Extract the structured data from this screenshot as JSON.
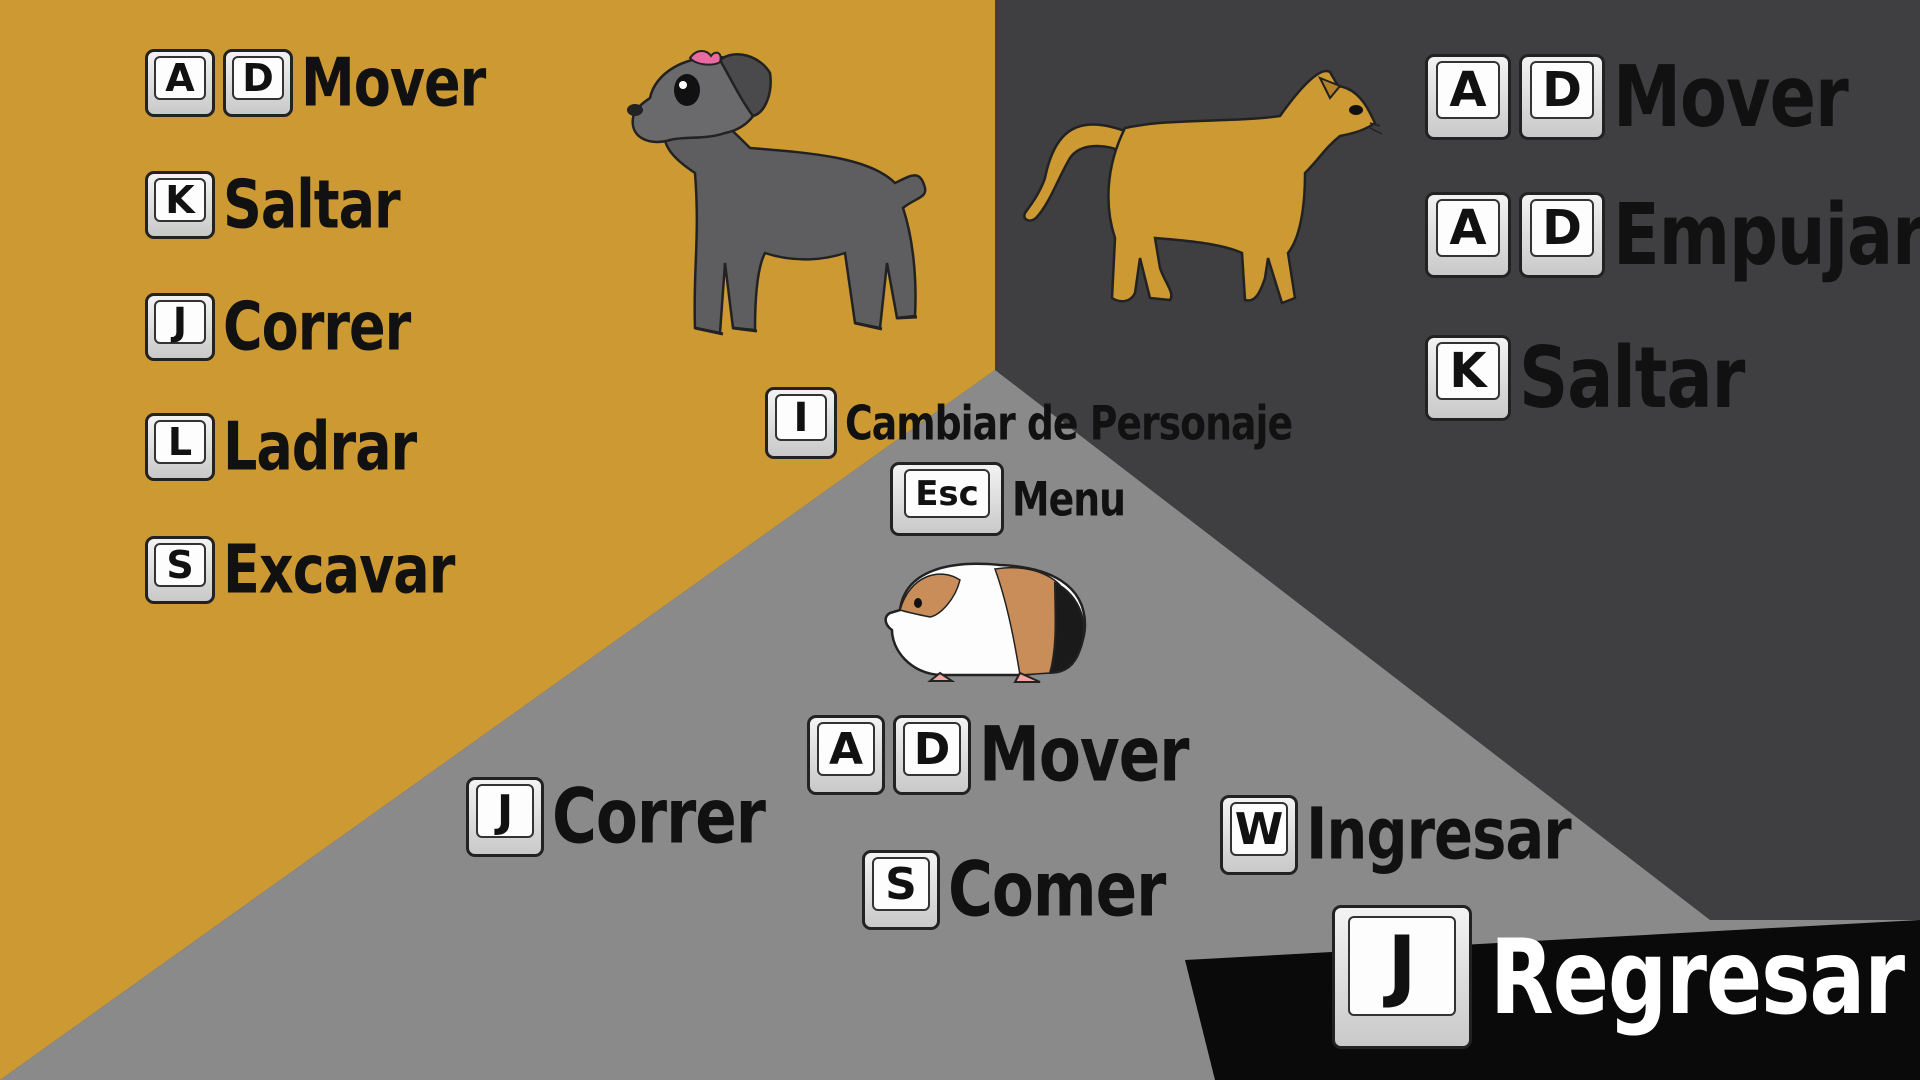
{
  "colors": {
    "dog_zone": "#cc9933",
    "cat_zone": "#3f3f41",
    "guinea_zone": "#8a8a8a",
    "back_bar": "#0a0a0a"
  },
  "icons": {
    "dog": "schnauzer-dog-icon",
    "cat": "orange-cat-icon",
    "guinea_pig": "guinea-pig-icon"
  },
  "dog": {
    "controls": [
      {
        "keys": [
          "A",
          "D"
        ],
        "label": "Mover"
      },
      {
        "keys": [
          "K"
        ],
        "label": "Saltar"
      },
      {
        "keys": [
          "J"
        ],
        "label": "Correr"
      },
      {
        "keys": [
          "L"
        ],
        "label": "Ladrar"
      },
      {
        "keys": [
          "S"
        ],
        "label": "Excavar"
      }
    ]
  },
  "cat": {
    "controls": [
      {
        "keys": [
          "A",
          "D"
        ],
        "label": "Mover"
      },
      {
        "keys": [
          "A",
          "D"
        ],
        "label": "Empujar"
      },
      {
        "keys": [
          "K"
        ],
        "label": "Saltar"
      }
    ]
  },
  "global": {
    "switch": {
      "key": "I",
      "label": "Cambiar de Personaje"
    },
    "menu": {
      "key": "Esc",
      "label": "Menu"
    }
  },
  "guinea_pig": {
    "move": {
      "keys": [
        "A",
        "D"
      ],
      "label": "Mover"
    },
    "run": {
      "key": "J",
      "label": "Correr"
    },
    "eat": {
      "key": "S",
      "label": "Comer"
    },
    "enter": {
      "key": "W",
      "label": "Ingresar"
    }
  },
  "back": {
    "key": "J",
    "label": "Regresar"
  }
}
